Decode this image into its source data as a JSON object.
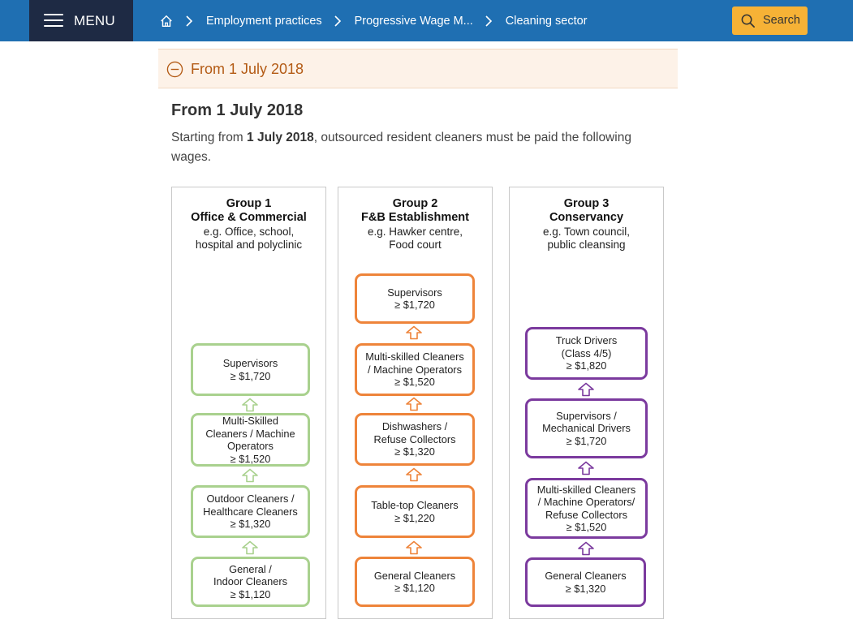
{
  "header": {
    "menu_label": "MENU",
    "breadcrumbs": [
      "Employment practices",
      "Progressive Wage M...",
      "Cleaning sector"
    ],
    "search_label": "Search"
  },
  "accordion": {
    "label": "From 1 July 2018"
  },
  "content": {
    "title": "From 1 July 2018",
    "intro_before": "Starting from ",
    "intro_bold": "1 July 2018",
    "intro_after": ", outsourced resident cleaners must be paid the following wages."
  },
  "groups": [
    {
      "title1": "Group 1",
      "title2": "Office & Commercial",
      "sub1": "e.g. Office, school,",
      "sub2": "hospital and polyclinic",
      "color": "#a9d18e",
      "boxes": [
        {
          "lines": [
            "Supervisors"
          ],
          "wage": "≥ $1,720"
        },
        {
          "lines": [
            "Multi-Skilled",
            "Cleaners / Machine",
            "Operators"
          ],
          "wage": "≥ $1,520"
        },
        {
          "lines": [
            "Outdoor Cleaners /",
            "Healthcare Cleaners"
          ],
          "wage": "≥ $1,320"
        },
        {
          "lines": [
            "General /",
            "Indoor Cleaners"
          ],
          "wage": "≥ $1,120"
        }
      ]
    },
    {
      "title1": "Group 2",
      "title2": "F&B Establishment",
      "sub1": "e.g. Hawker centre,",
      "sub2": "Food court",
      "color": "#ee843a",
      "boxes": [
        {
          "lines": [
            "Supervisors"
          ],
          "wage": "≥ $1,720"
        },
        {
          "lines": [
            "Multi-skilled Cleaners",
            "/ Machine Operators"
          ],
          "wage": "≥ $1,520"
        },
        {
          "lines": [
            "Dishwashers /",
            "Refuse Collectors"
          ],
          "wage": "≥ $1,320"
        },
        {
          "lines": [
            "Table-top Cleaners"
          ],
          "wage": "≥ $1,220"
        },
        {
          "lines": [
            "General Cleaners"
          ],
          "wage": "≥ $1,120"
        }
      ]
    },
    {
      "title1": "Group 3",
      "title2": "Conservancy",
      "sub1": "e.g. Town council,",
      "sub2": "public cleansing",
      "color": "#7b3a9e",
      "boxes": [
        {
          "lines": [
            "Truck Drivers",
            "(Class 4/5)"
          ],
          "wage": "≥ $1,820"
        },
        {
          "lines": [
            "Supervisors /",
            "Mechanical Drivers"
          ],
          "wage": "≥ $1,720"
        },
        {
          "lines": [
            "Multi-skilled Cleaners",
            "/ Machine Operators/",
            "Refuse Collectors"
          ],
          "wage": "≥ $1,520"
        },
        {
          "lines": [
            "General Cleaners"
          ],
          "wage": "≥ $1,320"
        }
      ]
    }
  ]
}
